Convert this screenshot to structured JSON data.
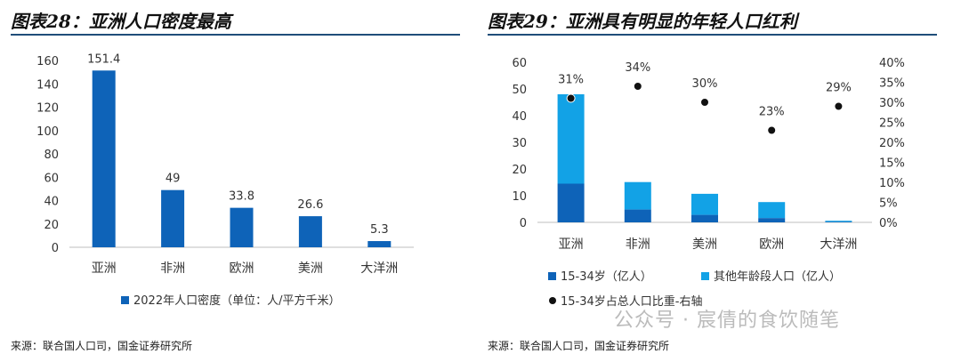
{
  "left": {
    "title": "图表28：亚洲人口密度最高",
    "source": "来源：联合国人口司，国金证券研究所"
  },
  "right": {
    "title": "图表29：亚洲具有明显的年轻人口红利",
    "source": "来源：联合国人口司，国金证券研究所"
  },
  "watermark": "公众号 · 宸倩的食饮随笔",
  "colors": {
    "dark_blue": "#0e63b8",
    "light_blue": "#12a2e6",
    "rule": "#1f4e79",
    "dot": "#111111"
  },
  "chart_data": [
    {
      "type": "bar",
      "categories": [
        "亚洲",
        "非洲",
        "欧洲",
        "美洲",
        "大洋洲"
      ],
      "series": [
        {
          "name": "2022年人口密度（单位：人/平方千米）",
          "values": [
            151.4,
            49,
            33.8,
            26.6,
            5.3
          ]
        }
      ],
      "data_labels": [
        "151.4",
        "49",
        "33.8",
        "26.6",
        "5.3"
      ],
      "ylim": [
        0,
        160
      ],
      "yticks": [
        "0",
        "20",
        "40",
        "60",
        "80",
        "100",
        "120",
        "140",
        "160"
      ],
      "legend_position": "bottom",
      "grid": false
    },
    {
      "type": "bar",
      "stacked": true,
      "categories": [
        "亚洲",
        "非洲",
        "美洲",
        "欧洲",
        "大洋洲"
      ],
      "series": [
        {
          "name": "15-34岁（亿人）",
          "values": [
            14.5,
            4.8,
            2.8,
            1.6,
            0.2
          ]
        },
        {
          "name": "其他年龄段人口（亿人）",
          "values": [
            33.5,
            10.3,
            7.9,
            6.0,
            0.4
          ]
        },
        {
          "name": "15-34岁占总人口比重-右轴",
          "axis": "right",
          "values": [
            0.31,
            0.34,
            0.3,
            0.23,
            0.29
          ]
        }
      ],
      "percent_labels": [
        "31%",
        "34%",
        "30%",
        "23%",
        "29%"
      ],
      "ylim": [
        0,
        60
      ],
      "yticks": [
        "0",
        "10",
        "20",
        "30",
        "40",
        "50",
        "60"
      ],
      "y2lim": [
        0,
        0.4
      ],
      "y2ticks": [
        "0%",
        "5%",
        "10%",
        "15%",
        "20%",
        "25%",
        "30%",
        "35%",
        "40%"
      ],
      "legend_position": "bottom",
      "grid": false
    }
  ]
}
